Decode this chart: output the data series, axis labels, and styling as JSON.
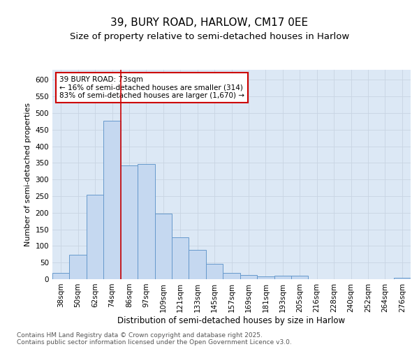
{
  "title1": "39, BURY ROAD, HARLOW, CM17 0EE",
  "title2": "Size of property relative to semi-detached houses in Harlow",
  "xlabel": "Distribution of semi-detached houses by size in Harlow",
  "ylabel": "Number of semi-detached properties",
  "bar_labels": [
    "38sqm",
    "50sqm",
    "62sqm",
    "74sqm",
    "86sqm",
    "97sqm",
    "109sqm",
    "121sqm",
    "133sqm",
    "145sqm",
    "157sqm",
    "169sqm",
    "181sqm",
    "193sqm",
    "205sqm",
    "216sqm",
    "228sqm",
    "240sqm",
    "252sqm",
    "264sqm",
    "276sqm"
  ],
  "bar_values": [
    18,
    73,
    255,
    477,
    343,
    347,
    197,
    127,
    88,
    46,
    18,
    12,
    8,
    10,
    10,
    0,
    0,
    0,
    0,
    0,
    5
  ],
  "bar_color": "#c5d8f0",
  "bar_edge_color": "#6699cc",
  "vline_x": 3.5,
  "vline_color": "#cc0000",
  "annotation_text": "39 BURY ROAD: 73sqm\n← 16% of semi-detached houses are smaller (314)\n83% of semi-detached houses are larger (1,670) →",
  "annotation_box_color": "#ffffff",
  "annotation_box_edge_color": "#cc0000",
  "ylim": [
    0,
    630
  ],
  "yticks": [
    0,
    50,
    100,
    150,
    200,
    250,
    300,
    350,
    400,
    450,
    500,
    550,
    600
  ],
  "grid_color": "#c8d4e3",
  "bg_color": "#ffffff",
  "plot_bg_color": "#dce8f5",
  "footer_text": "Contains HM Land Registry data © Crown copyright and database right 2025.\nContains public sector information licensed under the Open Government Licence v3.0.",
  "footer_color": "#555555",
  "title_fontsize": 11,
  "subtitle_fontsize": 9.5,
  "axis_label_fontsize": 8.5,
  "tick_fontsize": 7.5,
  "annotation_fontsize": 7.5,
  "footer_fontsize": 6.5,
  "ylabel_fontsize": 8
}
